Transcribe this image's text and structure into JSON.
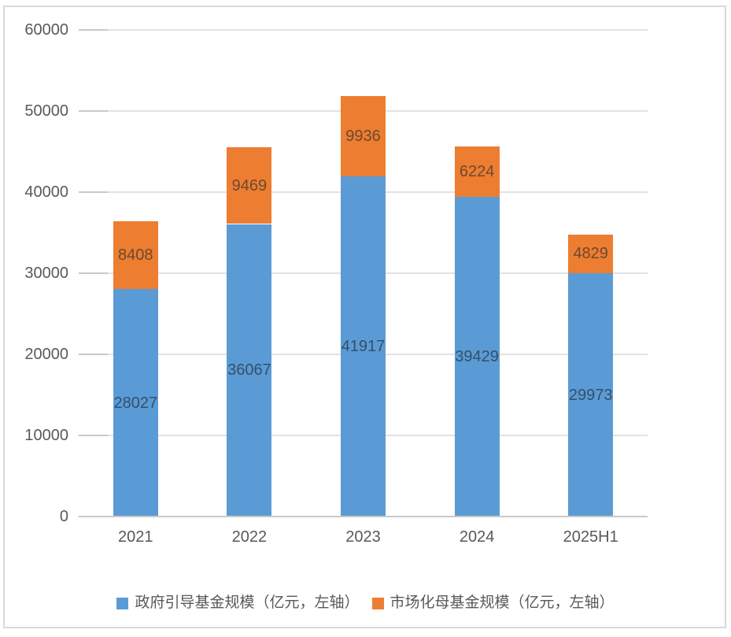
{
  "chart_data": {
    "type": "bar",
    "stacked": true,
    "title": "",
    "xlabel": "",
    "ylabel": "",
    "categories": [
      "2021",
      "2022",
      "2023",
      "2024",
      "2025H1"
    ],
    "series": [
      {
        "name": "政府引导基金规模（亿元，左轴）",
        "color": "#5B9BD5",
        "label_color": "#33506B",
        "values": [
          28027,
          36067,
          41917,
          39429,
          29973
        ]
      },
      {
        "name": "市场化母基金规模（亿元，左轴）",
        "color": "#ED7D31",
        "label_color": "#6B4A2E",
        "values": [
          8408,
          9469,
          9936,
          6224,
          4829
        ]
      }
    ],
    "ylim": [
      0,
      60000
    ],
    "yticks": [
      0,
      10000,
      20000,
      30000,
      40000,
      50000,
      60000
    ],
    "grid": true,
    "legend_position": "bottom"
  }
}
